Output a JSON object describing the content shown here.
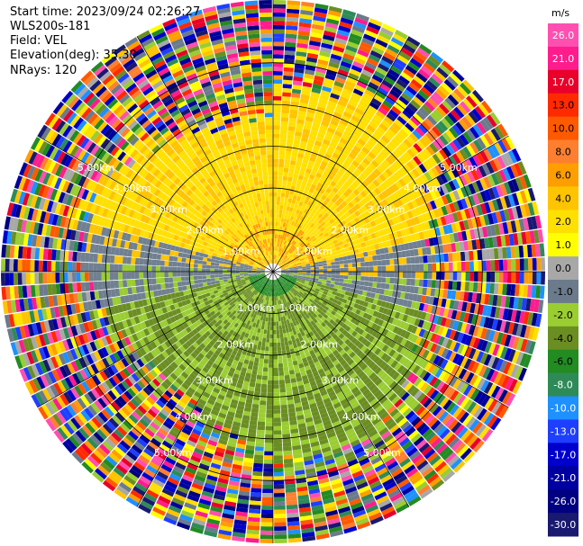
{
  "header": {
    "start_time": "Start time: 2023/09/24 02:26:27",
    "instrument": "WLS200s-181",
    "field": "Field: VEL",
    "elevation": "Elevation(deg): 35.30",
    "nrays": "NRays: 120"
  },
  "chart_data": {
    "type": "heatmap",
    "title": "",
    "projection": "polar PPI",
    "field": "VEL",
    "units": "m/s",
    "elevation_deg": 35.3,
    "n_rays": 120,
    "range_rings_km": [
      1.0,
      2.0,
      3.0,
      4.0,
      5.0
    ],
    "range_ring_labels": [
      "1.00km",
      "2.00km",
      "3.00km",
      "4.00km",
      "5.00km"
    ],
    "max_range_km": 6.5,
    "colorbar": {
      "label": "m/s",
      "ticks": [
        "26.0",
        "21.0",
        "17.0",
        "13.0",
        "10.0",
        "8.0",
        "6.0",
        "4.0",
        "2.0",
        "1.0",
        "0.0",
        "-1.0",
        "-2.0",
        "-4.0",
        "-6.0",
        "-8.0",
        "-10.0",
        "-13.0",
        "-17.0",
        "-21.0",
        "-26.0",
        "-30.0"
      ],
      "colors": [
        "#ff4fb0",
        "#ff1c8c",
        "#e8002a",
        "#ff2a00",
        "#ff5a00",
        "#ff7f30",
        "#ff9e00",
        "#ffc400",
        "#ffe000",
        "#ffff00",
        "#a8a8a8",
        "#6b7b8c",
        "#9acd32",
        "#6b8e23",
        "#228b22",
        "#2e8b57",
        "#1e90ff",
        "#1e3fff",
        "#0000cd",
        "#0000a0",
        "#000080",
        "#191970"
      ]
    },
    "pattern_notes": "Inner ranges: positive velocities (yellow) in north half, negative (green) in south half, gray near zero toward east/west; beyond ~4.5 km speckled noise across the full palette."
  }
}
